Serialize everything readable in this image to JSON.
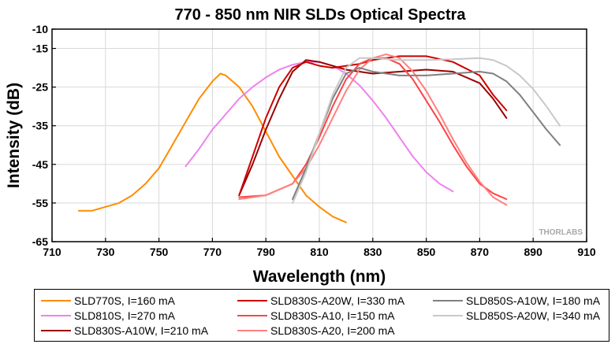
{
  "chart_data": {
    "type": "line",
    "title": "770 - 850 nm NIR SLDs Optical Spectra",
    "xlabel": "Wavelength (nm)",
    "ylabel": "Intensity (dB)",
    "xlim": [
      710,
      910
    ],
    "ylim": [
      -65,
      -10
    ],
    "xticks": [
      710,
      730,
      750,
      770,
      790,
      810,
      830,
      850,
      870,
      890,
      910
    ],
    "yticks": [
      -10,
      -15,
      -25,
      -35,
      -45,
      -55,
      -65
    ],
    "grid": true,
    "legend_position": "bottom",
    "watermark": "THORLABS",
    "series": [
      {
        "name": "SLD770S, I=160 mA",
        "color": "#ff8c00",
        "x": [
          720,
          725,
          730,
          735,
          740,
          745,
          750,
          755,
          760,
          765,
          770,
          773,
          775,
          780,
          785,
          790,
          795,
          800,
          805,
          810,
          815,
          820
        ],
        "y": [
          -57,
          -57,
          -56,
          -55,
          -53,
          -50,
          -46,
          -40,
          -34,
          -28,
          -23.5,
          -21.5,
          -22,
          -25,
          -30,
          -36.5,
          -43,
          -48,
          -53,
          -56,
          -58.5,
          -60
        ]
      },
      {
        "name": "SLD810S, I=270 mA",
        "color": "#ee82ee",
        "x": [
          760,
          765,
          770,
          775,
          780,
          785,
          790,
          795,
          800,
          805,
          810,
          815,
          820,
          825,
          830,
          835,
          840,
          845,
          850,
          855,
          860
        ],
        "y": [
          -45.5,
          -41,
          -36,
          -32,
          -28,
          -25,
          -22.5,
          -20.5,
          -19.2,
          -18.5,
          -18.5,
          -19.5,
          -21.5,
          -24.5,
          -28.5,
          -33,
          -38,
          -43,
          -47,
          -50,
          -52
        ]
      },
      {
        "name": "SLD830S-A10W, I=210 mA",
        "color": "#990000",
        "x": [
          780,
          785,
          790,
          795,
          800,
          805,
          810,
          815,
          820,
          825,
          830,
          840,
          850,
          860,
          870,
          875,
          880
        ],
        "y": [
          -53,
          -45,
          -36,
          -28,
          -21,
          -18,
          -18.5,
          -19.5,
          -20.5,
          -21,
          -21.5,
          -21,
          -20.5,
          -21,
          -24,
          -28,
          -33
        ]
      },
      {
        "name": "SLD830S-A20W, I=330 mA",
        "color": "#cc0000",
        "x": [
          780,
          785,
          790,
          795,
          800,
          805,
          810,
          815,
          820,
          825,
          830,
          840,
          850,
          860,
          870,
          875,
          880
        ],
        "y": [
          -53,
          -43,
          -33,
          -25,
          -20,
          -18.5,
          -19.5,
          -20,
          -19.5,
          -19,
          -18,
          -17,
          -17,
          -18.5,
          -22,
          -27,
          -31
        ]
      },
      {
        "name": "SLD830S-A10, I=150 mA",
        "color": "#ff4444",
        "x": [
          780,
          790,
          800,
          805,
          810,
          815,
          820,
          825,
          830,
          835,
          840,
          845,
          850,
          855,
          860,
          865,
          870,
          875,
          880
        ],
        "y": [
          -53.5,
          -53,
          -50,
          -45,
          -38,
          -30,
          -23,
          -19,
          -17.5,
          -17.5,
          -19,
          -23,
          -28.5,
          -34,
          -40,
          -45.5,
          -50,
          -52.5,
          -54
        ]
      },
      {
        "name": "SLD830S-A20, I=200 mA",
        "color": "#ff8080",
        "x": [
          780,
          790,
          800,
          805,
          810,
          815,
          820,
          825,
          830,
          835,
          840,
          845,
          850,
          855,
          860,
          865,
          870,
          875,
          880
        ],
        "y": [
          -54,
          -53,
          -50,
          -46,
          -40,
          -33,
          -26,
          -20.5,
          -17.5,
          -16.5,
          -17.5,
          -21,
          -26,
          -32,
          -38.5,
          -44.5,
          -49.5,
          -53.5,
          -55.5
        ]
      },
      {
        "name": "SLD850S-A10W, I=180 mA",
        "color": "#808080",
        "x": [
          800,
          805,
          810,
          815,
          820,
          825,
          830,
          840,
          850,
          860,
          870,
          875,
          880,
          885,
          890,
          895,
          900
        ],
        "y": [
          -54,
          -46,
          -37,
          -28,
          -21.5,
          -20,
          -21,
          -22,
          -22,
          -21.5,
          -21,
          -21.5,
          -23.5,
          -27,
          -31.5,
          -36,
          -40
        ]
      },
      {
        "name": "SLD850S-A20W, I=340 mA",
        "color": "#c8c8c8",
        "x": [
          800,
          805,
          810,
          815,
          820,
          825,
          830,
          840,
          850,
          860,
          870,
          875,
          880,
          885,
          890,
          895,
          900
        ],
        "y": [
          -55,
          -47,
          -37,
          -27,
          -20,
          -17.5,
          -17.5,
          -18,
          -18,
          -17.8,
          -17.5,
          -18,
          -19.5,
          -22,
          -25.5,
          -30,
          -35
        ]
      }
    ]
  }
}
